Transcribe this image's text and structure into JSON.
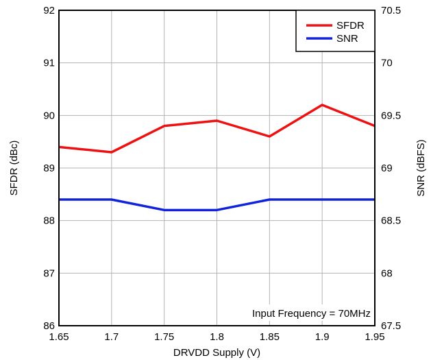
{
  "chart_data": {
    "type": "line",
    "title": "",
    "xlabel": "DRVDD Supply (V)",
    "ylabel_left": "SFDR (dBc)",
    "ylabel_right": "SNR (dBFS)",
    "x": [
      1.65,
      1.7,
      1.75,
      1.8,
      1.85,
      1.9,
      1.95
    ],
    "xlim": [
      1.65,
      1.95
    ],
    "ylim_left": [
      86,
      92
    ],
    "ylim_right": [
      67.5,
      70.5
    ],
    "x_ticks": [
      "1.65",
      "1.7",
      "1.75",
      "1.8",
      "1.85",
      "1.9",
      "1.95"
    ],
    "y_ticks_left": [
      "86",
      "87",
      "88",
      "89",
      "90",
      "91",
      "92"
    ],
    "y_ticks_right": [
      "67.5",
      "68",
      "68.5",
      "69",
      "69.5",
      "70",
      "70.5"
    ],
    "series": [
      {
        "name": "SFDR",
        "axis": "left",
        "color": "#ee1111",
        "values": [
          89.4,
          89.3,
          89.8,
          89.9,
          89.6,
          90.2,
          89.8
        ]
      },
      {
        "name": "SNR",
        "axis": "right",
        "color": "#1122dd",
        "values": [
          68.7,
          68.7,
          68.6,
          68.6,
          68.7,
          68.7,
          68.7
        ]
      }
    ],
    "grid": true,
    "legend_position": "top-right",
    "annotation": "Input Frequency = 70MHz"
  }
}
